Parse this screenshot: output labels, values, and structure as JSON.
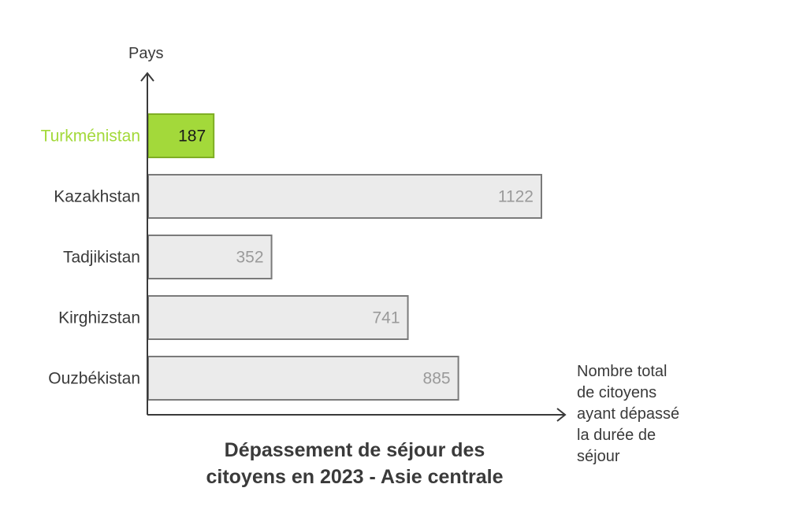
{
  "chart_data": {
    "type": "bar",
    "orientation": "horizontal",
    "title": "Dépassement de séjour des citoyens en 2023 - Asie centrale",
    "title_lines": [
      "Dépassement de séjour des",
      "citoyens en 2023 - Asie centrale"
    ],
    "ylabel": "Pays",
    "xlabel": "Nombre total de citoyens ayant dépassé la durée de séjour",
    "xlabel_lines": [
      "Nombre total",
      "de citoyens",
      "ayant dépassé",
      "la durée de",
      "séjour"
    ],
    "categories": [
      "Turkménistan",
      "Kazakhstan",
      "Tadjikistan",
      "Kirghizstan",
      "Ouzbékistan"
    ],
    "values": [
      187,
      1122,
      352,
      741,
      885
    ],
    "value_labels": [
      "187",
      "1122",
      "352",
      "741",
      "885"
    ],
    "highlight_index": 0,
    "xlim": [
      0,
      1122
    ],
    "grid": false,
    "colors": {
      "highlight_fill": "#a3d93a",
      "highlight_stroke": "#7fae24",
      "highlight_label": "#a3d93a",
      "bar_fill": "#ebebeb",
      "bar_stroke": "#7a7a7a",
      "value_text": "#9a9a9a",
      "highlight_value_text": "#1a1a1a",
      "axis": "#3a3a3a"
    }
  }
}
